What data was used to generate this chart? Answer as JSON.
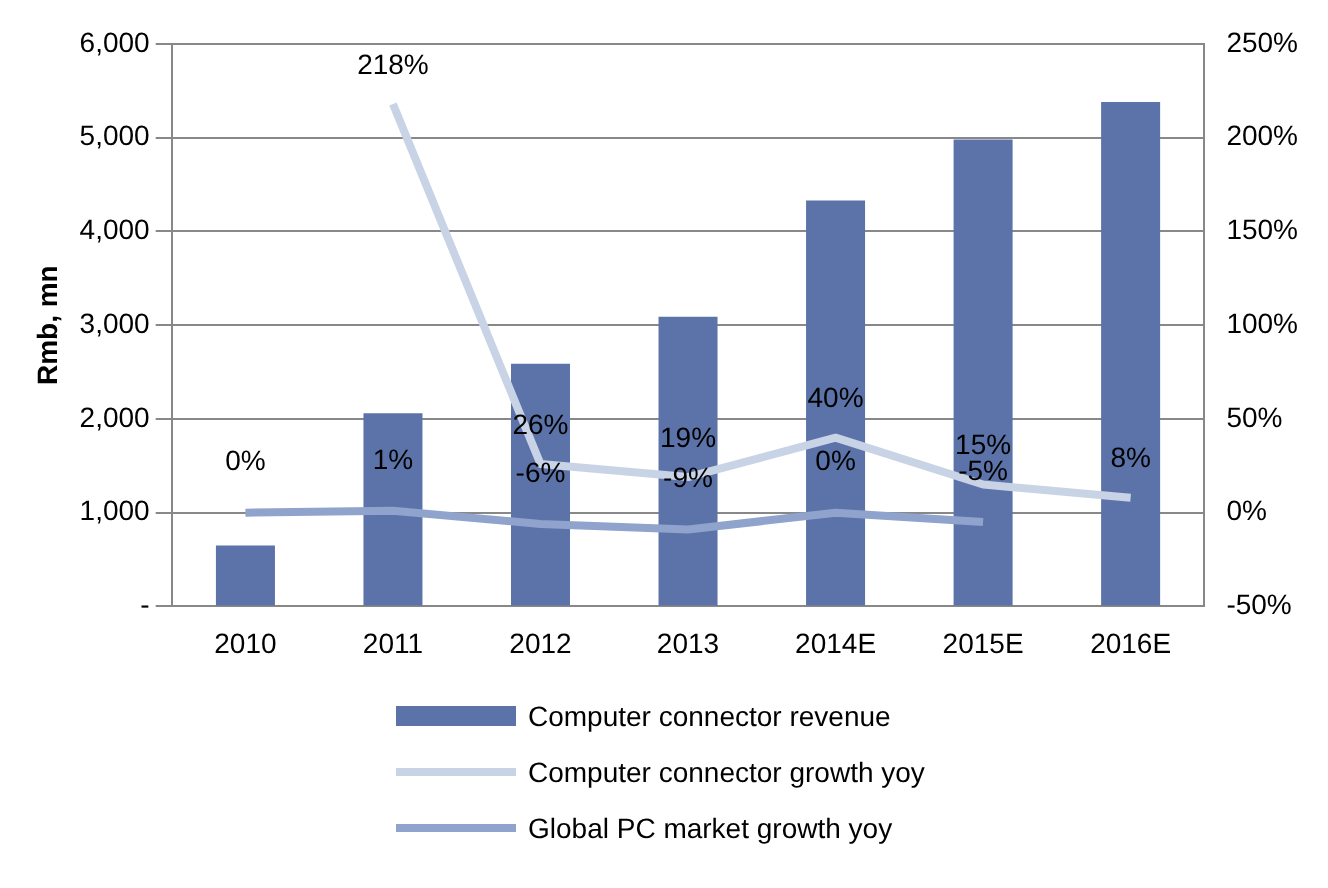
{
  "chart_data": {
    "type": "bar",
    "ylabel": "Rmb, mn",
    "categories": [
      "2010",
      "2011",
      "2012",
      "2013",
      "2014E",
      "2015E",
      "2016E"
    ],
    "series": [
      {
        "name": "Computer connector revenue",
        "type": "bar",
        "color": "#5b73a8",
        "values": [
          650,
          2060,
          2590,
          3090,
          4330,
          4980,
          5380
        ]
      },
      {
        "name": "Computer connector growth yoy",
        "type": "line",
        "axis": "y2",
        "color": "#c9d3e6",
        "values": [
          null,
          218,
          26,
          19,
          40,
          15,
          8
        ],
        "value_labels": [
          null,
          "218%",
          "26%",
          "19%",
          "40%",
          "15%",
          "8%"
        ]
      },
      {
        "name": "Global PC market growth yoy",
        "type": "line",
        "axis": "y2",
        "color": "#8fa3cc",
        "values": [
          0,
          1,
          -6,
          -9,
          0,
          -5,
          null
        ],
        "value_labels": [
          "0%",
          "1%",
          "-6%",
          "-9%",
          "0%",
          "-5%",
          null
        ]
      }
    ],
    "ylim": [
      0,
      6000
    ],
    "yticks": [
      {
        "value": 0,
        "label": "-"
      },
      {
        "value": 1000,
        "label": "1,000"
      },
      {
        "value": 2000,
        "label": "2,000"
      },
      {
        "value": 3000,
        "label": "3,000"
      },
      {
        "value": 4000,
        "label": "4,000"
      },
      {
        "value": 5000,
        "label": "5,000"
      },
      {
        "value": 6000,
        "label": "6,000"
      }
    ],
    "y2lim": [
      -50,
      250
    ],
    "y2ticks": [
      {
        "value": -50,
        "label": "-50%"
      },
      {
        "value": 0,
        "label": "0%"
      },
      {
        "value": 50,
        "label": "50%"
      },
      {
        "value": 100,
        "label": "100%"
      },
      {
        "value": 150,
        "label": "150%"
      },
      {
        "value": 200,
        "label": "200%"
      },
      {
        "value": 250,
        "label": "250%"
      }
    ],
    "grid": "y",
    "legend": "bottom",
    "marker": "none",
    "line_style": "solid"
  }
}
